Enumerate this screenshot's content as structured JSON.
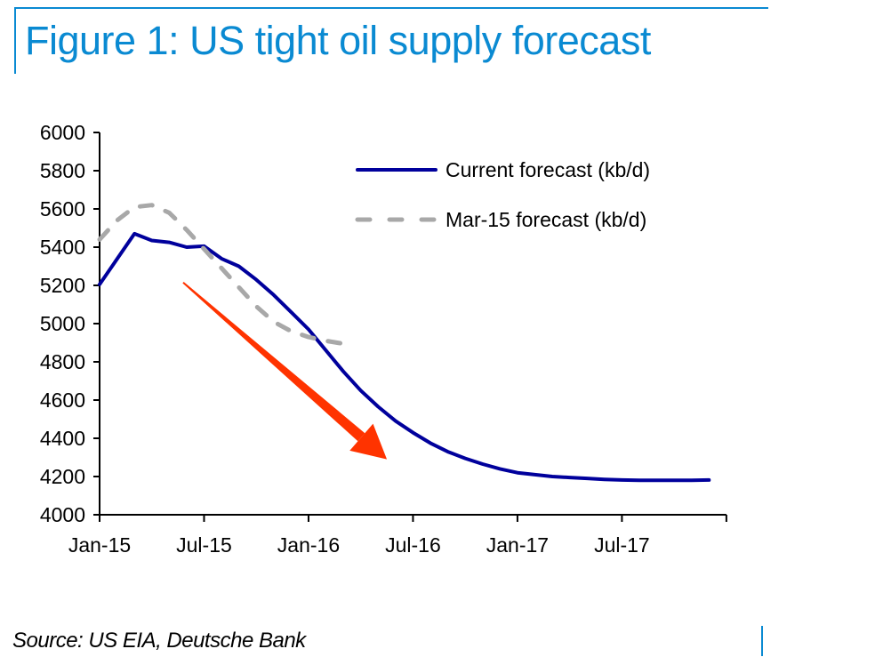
{
  "header": {
    "title": "Figure 1: US tight oil supply forecast"
  },
  "footer": {
    "source": "Source: US EIA, Deutsche Bank"
  },
  "colors": {
    "frame": "#0a8ad2",
    "current": "#00009c",
    "march": "#a8a8a8",
    "arrow": "#ff3300"
  },
  "chart_data": {
    "type": "line",
    "title": "Figure 1: US tight oil supply forecast",
    "xlabel": "",
    "ylabel": "",
    "ylim": [
      4000,
      6000
    ],
    "yticks": [
      4000,
      4200,
      4400,
      4600,
      4800,
      5000,
      5200,
      5400,
      5600,
      5800,
      6000
    ],
    "xticks": [
      "Jan-15",
      "Jul-15",
      "Jan-16",
      "Jul-16",
      "Jan-17",
      "Jul-17"
    ],
    "x_month_range": [
      "Jan-15",
      "Jan-18"
    ],
    "grid": false,
    "legend_position": "top-right",
    "series": [
      {
        "name": "Current forecast (kb/d)",
        "style": "solid",
        "start": "Jan-15",
        "months": [
          0,
          2,
          3,
          4,
          5,
          6,
          7,
          8,
          9,
          10,
          11,
          12,
          13,
          14,
          15,
          16,
          17,
          18,
          19,
          20,
          21,
          22,
          23,
          24,
          25,
          26,
          27,
          28,
          29,
          30,
          31,
          32,
          33,
          34,
          35
        ],
        "values": [
          5205,
          5470,
          5435,
          5425,
          5400,
          5405,
          5340,
          5300,
          5230,
          5150,
          5060,
          4970,
          4860,
          4750,
          4650,
          4565,
          4490,
          4430,
          4375,
          4330,
          4295,
          4265,
          4240,
          4220,
          4210,
          4200,
          4195,
          4190,
          4185,
          4182,
          4180,
          4180,
          4180,
          4180,
          4182
        ]
      },
      {
        "name": "Mar-15 forecast (kb/d)",
        "style": "dashed",
        "start": "Jan-15",
        "months": [
          0,
          1,
          2,
          3,
          4,
          5,
          6,
          7,
          8,
          9,
          10,
          11,
          12,
          13,
          14
        ],
        "values": [
          5440,
          5540,
          5610,
          5620,
          5580,
          5490,
          5390,
          5290,
          5190,
          5090,
          5010,
          4960,
          4930,
          4910,
          4895
        ]
      }
    ],
    "annotations": [
      {
        "type": "arrow",
        "description": "red downward arrow",
        "from": {
          "month": 4.8,
          "value": 5215
        },
        "to": {
          "month": 16.5,
          "value": 4290
        }
      }
    ]
  }
}
